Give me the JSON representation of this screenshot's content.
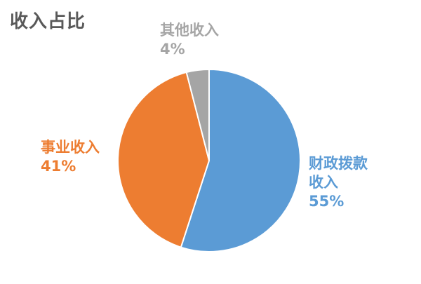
{
  "chart_data": {
    "type": "pie",
    "title": "收入占比",
    "slices": [
      {
        "label_lines": [
          "财政拨款",
          "收入"
        ],
        "name": "财政拨款收入",
        "value": 55,
        "value_label": "55%",
        "color": "#5b9bd5"
      },
      {
        "label_lines": [
          "事业收入"
        ],
        "name": "事业收入",
        "value": 41,
        "value_label": "41%",
        "color": "#ed7d31"
      },
      {
        "label_lines": [
          "其他收入"
        ],
        "name": "其他收入",
        "value": 4,
        "value_label": "4%",
        "color": "#a5a5a5"
      }
    ],
    "legend": "none"
  }
}
